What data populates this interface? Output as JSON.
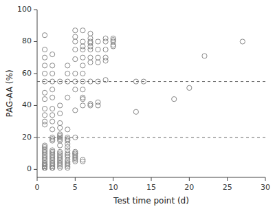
{
  "chart_data": {
    "type": "scatter",
    "xlabel": "Test time point (d)",
    "ylabel": "PAG-AA (%)",
    "xlim": [
      0,
      30
    ],
    "ylim": [
      -5,
      100
    ],
    "xticks": [
      0,
      5,
      10,
      15,
      20,
      25,
      30
    ],
    "yticks": [
      0,
      20,
      40,
      60,
      80,
      100
    ],
    "hlines": [
      20,
      55
    ],
    "marker": "circle",
    "color": "#888888",
    "x": [
      1,
      1,
      1,
      1,
      1,
      1,
      1,
      1,
      1,
      1,
      1,
      1,
      1,
      1,
      1,
      1,
      1,
      1,
      1,
      1,
      1,
      1,
      1,
      1,
      1,
      1,
      1,
      1,
      1,
      1,
      1,
      1,
      1,
      1,
      1,
      2,
      2,
      2,
      2,
      2,
      2,
      2,
      2,
      2,
      2,
      2,
      2,
      2,
      2,
      2,
      2,
      2,
      2,
      2,
      2,
      2,
      2,
      2,
      2,
      2,
      2,
      2,
      2,
      3,
      3,
      3,
      3,
      3,
      3,
      3,
      3,
      3,
      3,
      3,
      3,
      3,
      3,
      3,
      3,
      3,
      3,
      3,
      3,
      3,
      3,
      3,
      4,
      4,
      4,
      4,
      4,
      4,
      4,
      4,
      4,
      4,
      4,
      4,
      4,
      4,
      4,
      4,
      4,
      4,
      4,
      4,
      5,
      5,
      5,
      5,
      5,
      5,
      5,
      5,
      5,
      5,
      5,
      5,
      5,
      5,
      5,
      5,
      5,
      5,
      6,
      6,
      6,
      6,
      6,
      6,
      6,
      6,
      6,
      6,
      6,
      6,
      6,
      6,
      7,
      7,
      7,
      7,
      7,
      7,
      7,
      7,
      7,
      7,
      7,
      8,
      8,
      8,
      8,
      8,
      8,
      8,
      9,
      9,
      9,
      9,
      9,
      9,
      10,
      10,
      10,
      10,
      10,
      13,
      13,
      14,
      18,
      20,
      22,
      27
    ],
    "values": [
      1,
      1,
      1,
      1,
      1,
      2,
      2,
      2,
      2,
      3,
      3,
      4,
      5,
      6,
      7,
      8,
      9,
      10,
      11,
      12,
      13,
      14,
      15,
      28,
      30,
      34,
      38,
      44,
      48,
      55,
      60,
      65,
      70,
      75,
      84,
      1,
      1,
      1,
      2,
      2,
      3,
      4,
      5,
      6,
      7,
      8,
      9,
      10,
      11,
      12,
      18,
      19,
      20,
      25,
      30,
      34,
      38,
      45,
      50,
      55,
      60,
      65,
      72,
      1,
      2,
      3,
      4,
      5,
      6,
      7,
      8,
      9,
      10,
      11,
      15,
      18,
      19,
      20,
      20,
      21,
      22,
      26,
      29,
      35,
      40,
      55,
      1,
      2,
      3,
      4,
      5,
      6,
      8,
      9,
      10,
      12,
      14,
      16,
      18,
      19,
      20,
      25,
      45,
      55,
      60,
      65,
      5,
      6,
      7,
      8,
      9,
      10,
      10,
      11,
      20,
      37,
      50,
      55,
      60,
      69,
      75,
      80,
      83,
      87,
      5,
      6,
      40,
      44,
      45,
      50,
      55,
      60,
      65,
      70,
      75,
      77,
      80,
      87,
      40,
      41,
      55,
      67,
      70,
      75,
      77,
      79,
      80,
      82,
      85,
      40,
      42,
      55,
      67,
      70,
      75,
      80,
      56,
      68,
      70,
      75,
      80,
      82,
      77,
      78,
      80,
      81,
      82,
      36,
      55,
      55,
      44,
      51,
      71,
      80
    ]
  }
}
